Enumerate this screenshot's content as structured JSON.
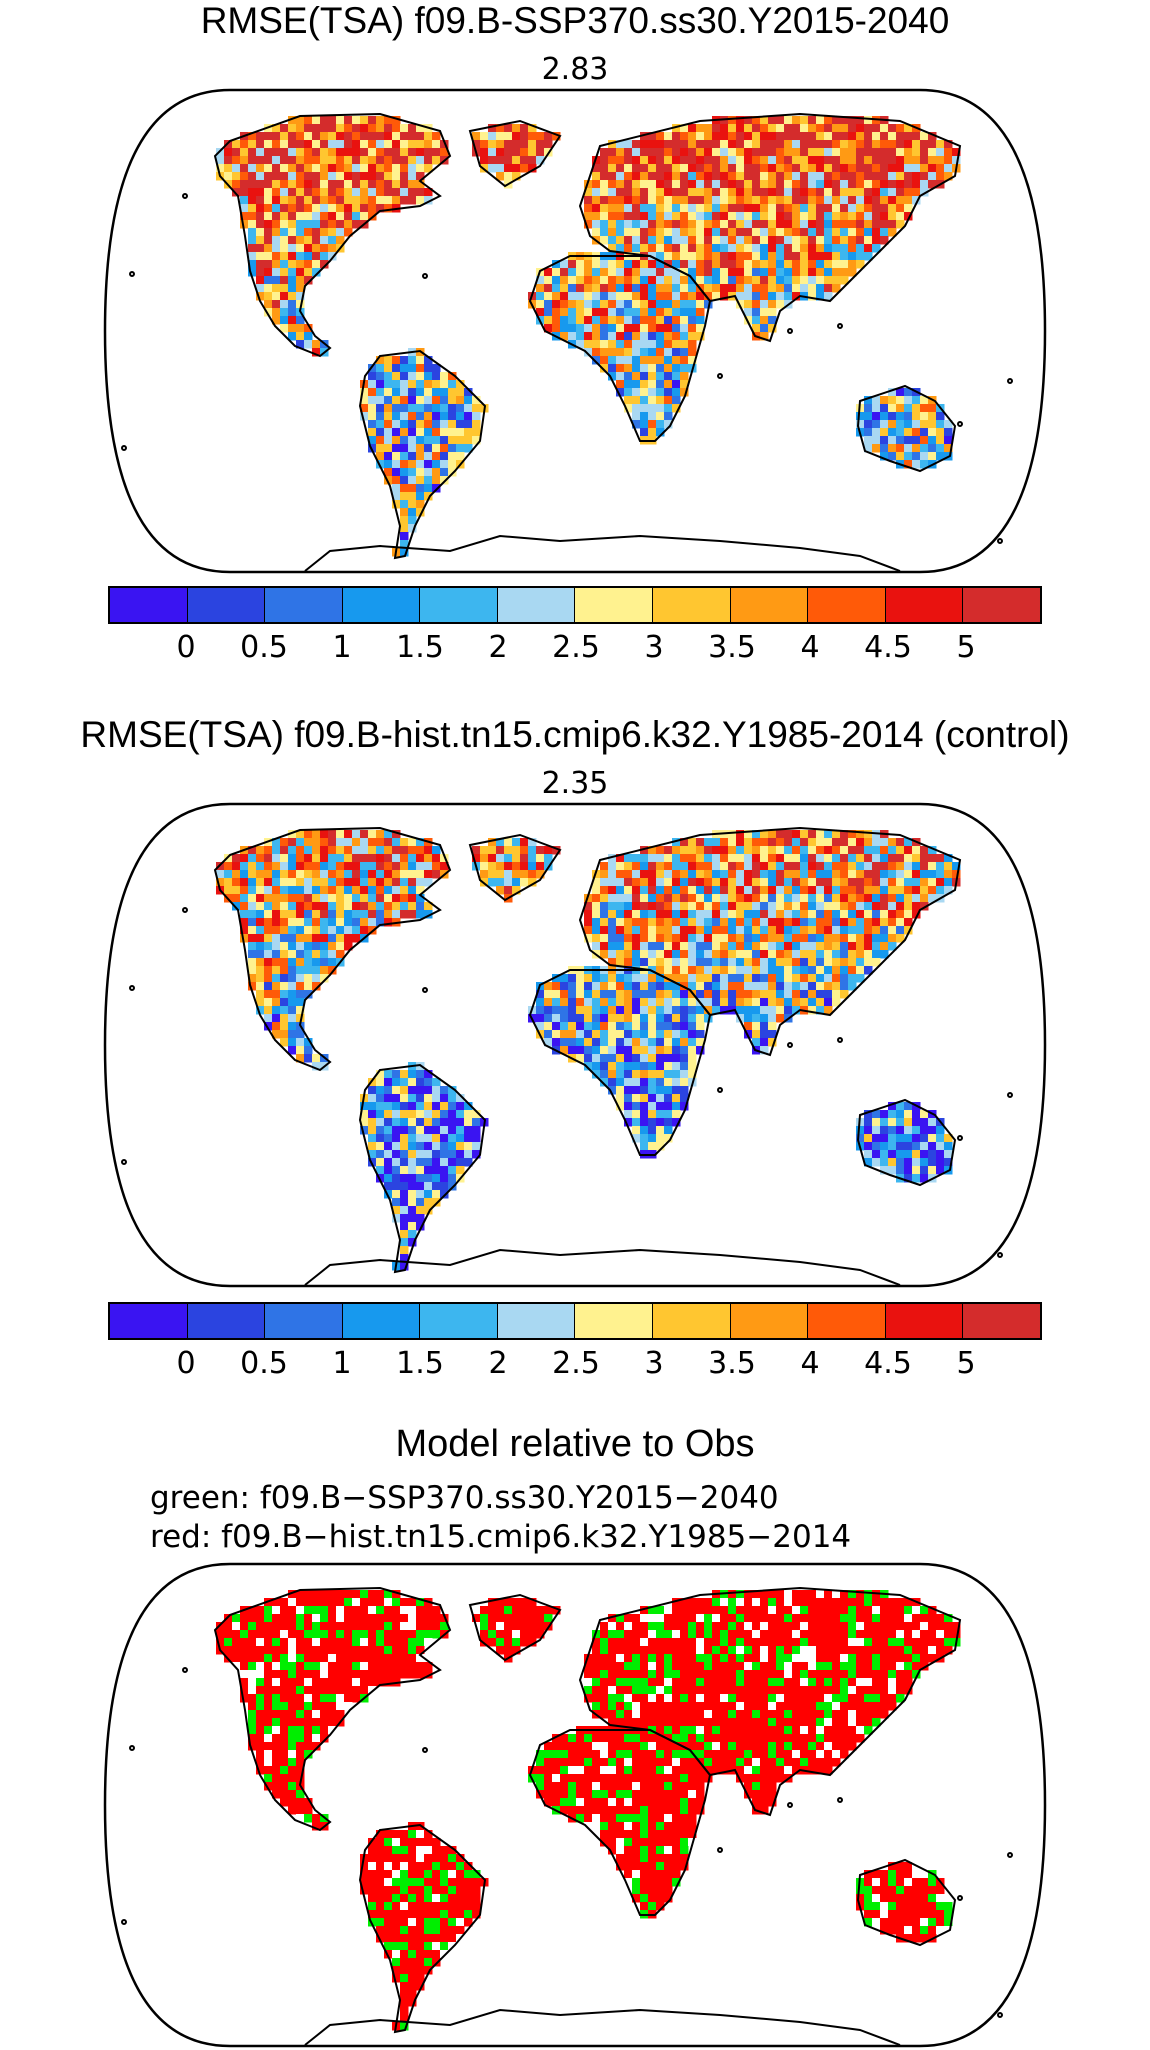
{
  "panels": [
    {
      "title": "RMSE(TSA) f09.B-SSP370.ss30.Y2015-2040",
      "value": "2.83"
    },
    {
      "title": "RMSE(TSA) f09.B-hist.tn15.cmip6.k32.Y1985-2014 (control)",
      "value": "2.35"
    }
  ],
  "colorbar": {
    "colors": [
      "#3a14f2",
      "#2b44e0",
      "#2f74e6",
      "#1799ee",
      "#3db6ef",
      "#a9d8f2",
      "#fff28f",
      "#ffc630",
      "#ff9a14",
      "#ff5a08",
      "#e9120f",
      "#d42c2c"
    ],
    "tick_labels": [
      "0",
      "0.5",
      "1",
      "1.5",
      "2",
      "2.5",
      "3",
      "3.5",
      "4",
      "4.5",
      "5"
    ]
  },
  "comparison": {
    "title": "Model relative to Obs",
    "green_line": "green: f09.B−SSP370.ss30.Y2015−2040",
    "red_line": "red: f09.B−hist.tn15.cmip6.k32.Y1985−2014",
    "green_color": "#00ee00",
    "red_color": "#ff0000"
  }
}
